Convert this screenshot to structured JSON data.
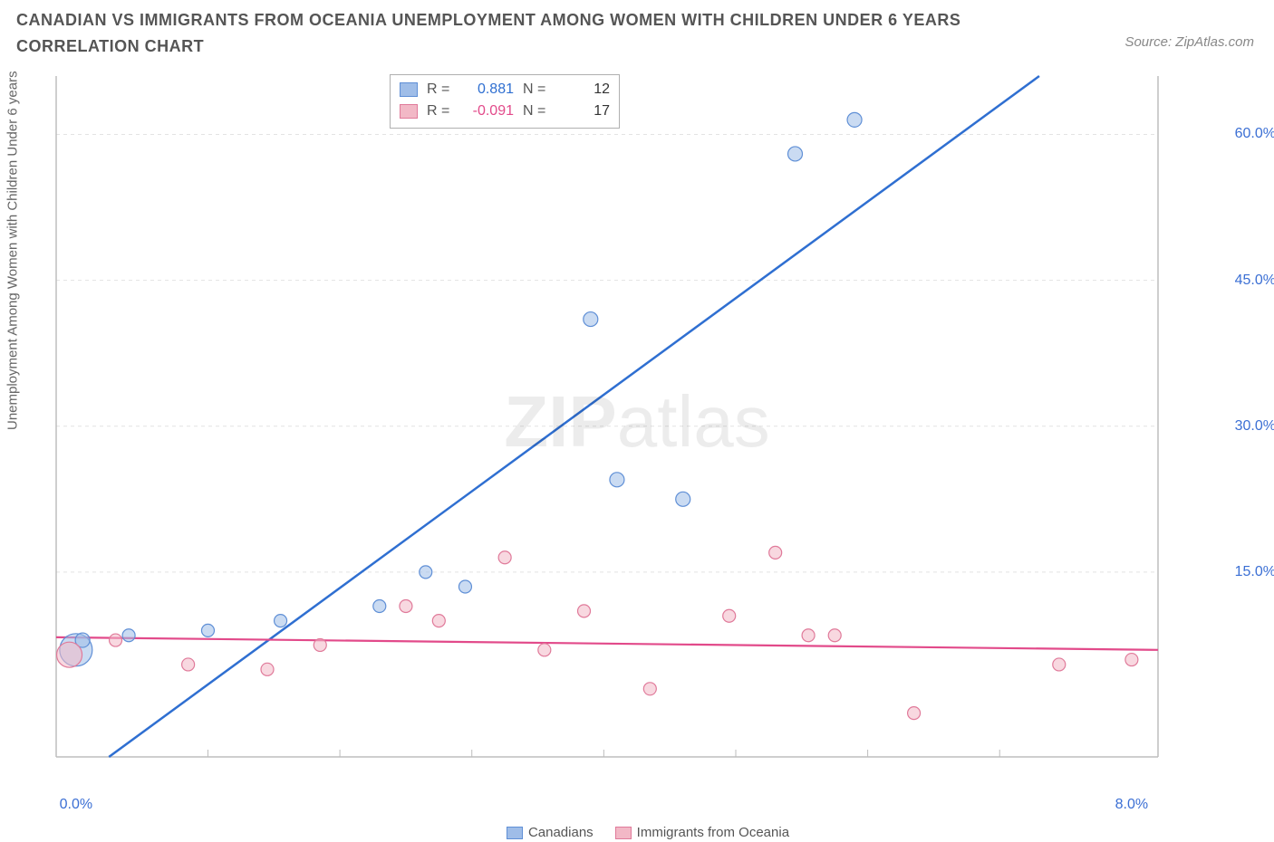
{
  "title": "CANADIAN VS IMMIGRANTS FROM OCEANIA UNEMPLOYMENT AMONG WOMEN WITH CHILDREN UNDER 6 YEARS CORRELATION CHART",
  "source_label": "Source: ZipAtlas.com",
  "y_axis_label": "Unemployment Among Women with Children Under 6 years",
  "watermark_zip": "ZIP",
  "watermark_atlas": "atlas",
  "chart": {
    "type": "scatter",
    "background_color": "#ffffff",
    "grid_color": "#e3e3e3",
    "axis_line_color": "#bdbdbd",
    "x_range": [
      -0.15,
      8.2
    ],
    "y_range": [
      -4,
      66
    ],
    "y_ticks": [
      15.0,
      30.0,
      45.0,
      60.0
    ],
    "y_tick_labels": [
      "15.0%",
      "30.0%",
      "45.0%",
      "60.0%"
    ],
    "y_tick_color": "#3b6fd4",
    "x_ticks": [
      0.0,
      8.0
    ],
    "x_tick_labels": [
      "0.0%",
      "8.0%"
    ],
    "x_tick_color": "#3b6fd4",
    "x_minor_ticks": [
      1,
      2,
      3,
      4,
      5,
      6,
      7
    ],
    "series": [
      {
        "name": "Canadians",
        "fill": "#9fbde8",
        "stroke": "#5f8fd6",
        "fill_opacity": 0.55,
        "trend": {
          "x1": 0.25,
          "y1": -4,
          "x2": 7.3,
          "y2": 66,
          "color": "#2f6fd1",
          "width": 2.5
        },
        "points": [
          {
            "x": 0.0,
            "y": 7.0,
            "r": 18
          },
          {
            "x": 0.05,
            "y": 8.0,
            "r": 8
          },
          {
            "x": 0.4,
            "y": 8.5,
            "r": 7
          },
          {
            "x": 1.0,
            "y": 9.0,
            "r": 7
          },
          {
            "x": 1.55,
            "y": 10.0,
            "r": 7
          },
          {
            "x": 2.3,
            "y": 11.5,
            "r": 7
          },
          {
            "x": 2.65,
            "y": 15.0,
            "r": 7
          },
          {
            "x": 2.95,
            "y": 13.5,
            "r": 7
          },
          {
            "x": 3.9,
            "y": 41.0,
            "r": 8
          },
          {
            "x": 4.1,
            "y": 24.5,
            "r": 8
          },
          {
            "x": 4.6,
            "y": 22.5,
            "r": 8
          },
          {
            "x": 5.45,
            "y": 58.0,
            "r": 8
          },
          {
            "x": 5.9,
            "y": 61.5,
            "r": 8
          }
        ]
      },
      {
        "name": "Immigrants from Oceania",
        "fill": "#f2b8c6",
        "stroke": "#e07a9a",
        "fill_opacity": 0.55,
        "trend": {
          "x1": -0.15,
          "y1": 8.3,
          "x2": 8.2,
          "y2": 7.0,
          "color": "#e24a8a",
          "width": 2.2
        },
        "points": [
          {
            "x": -0.05,
            "y": 6.5,
            "r": 14
          },
          {
            "x": 0.3,
            "y": 8.0,
            "r": 7
          },
          {
            "x": 0.85,
            "y": 5.5,
            "r": 7
          },
          {
            "x": 1.45,
            "y": 5.0,
            "r": 7
          },
          {
            "x": 1.85,
            "y": 7.5,
            "r": 7
          },
          {
            "x": 2.5,
            "y": 11.5,
            "r": 7
          },
          {
            "x": 2.75,
            "y": 10.0,
            "r": 7
          },
          {
            "x": 3.25,
            "y": 16.5,
            "r": 7
          },
          {
            "x": 3.55,
            "y": 7.0,
            "r": 7
          },
          {
            "x": 3.85,
            "y": 11.0,
            "r": 7
          },
          {
            "x": 4.35,
            "y": 3.0,
            "r": 7
          },
          {
            "x": 4.95,
            "y": 10.5,
            "r": 7
          },
          {
            "x": 5.3,
            "y": 17.0,
            "r": 7
          },
          {
            "x": 5.55,
            "y": 8.5,
            "r": 7
          },
          {
            "x": 5.75,
            "y": 8.5,
            "r": 7
          },
          {
            "x": 6.35,
            "y": 0.5,
            "r": 7
          },
          {
            "x": 7.45,
            "y": 5.5,
            "r": 7
          },
          {
            "x": 8.0,
            "y": 6.0,
            "r": 7
          }
        ]
      }
    ],
    "stats_box": {
      "rows": [
        {
          "swatch_fill": "#9fbde8",
          "swatch_stroke": "#5f8fd6",
          "r_label": "R =",
          "r_value": "0.881",
          "r_color": "#2f6fd1",
          "n_label": "N =",
          "n_value": "12"
        },
        {
          "swatch_fill": "#f2b8c6",
          "swatch_stroke": "#e07a9a",
          "r_label": "R =",
          "r_value": "-0.091",
          "r_color": "#e24a8a",
          "n_label": "N =",
          "n_value": "17"
        }
      ]
    },
    "legend_bottom": [
      {
        "label": "Canadians",
        "fill": "#9fbde8",
        "stroke": "#5f8fd6"
      },
      {
        "label": "Immigrants from Oceania",
        "fill": "#f2b8c6",
        "stroke": "#e07a9a"
      }
    ]
  }
}
